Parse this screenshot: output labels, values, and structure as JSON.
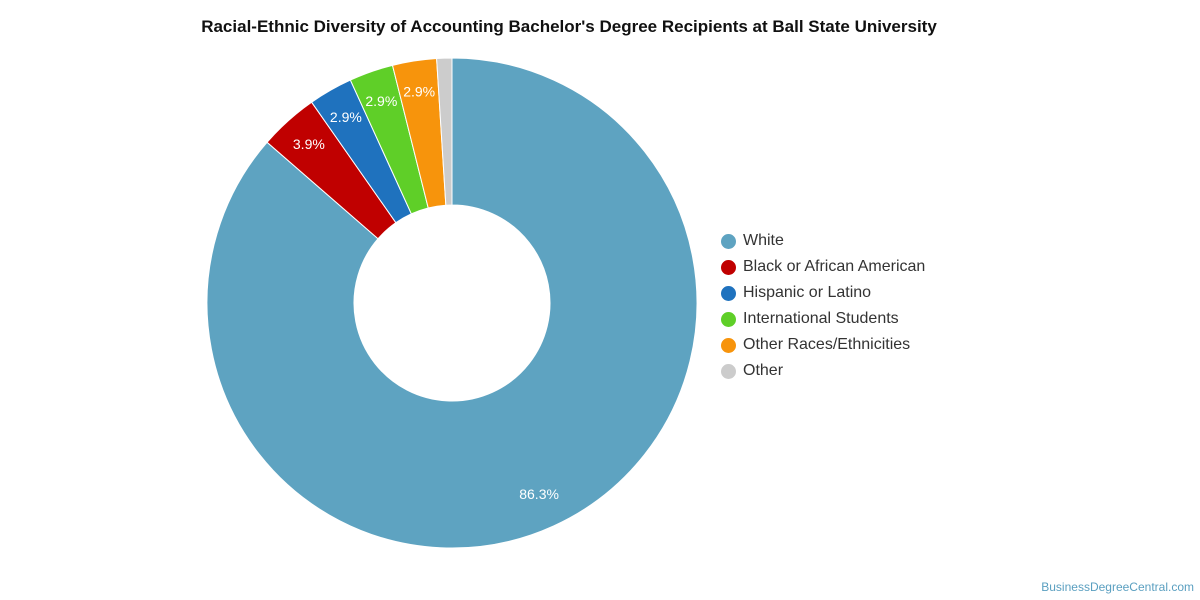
{
  "chart_data": {
    "type": "pie",
    "title": "Racial-Ethnic Diversity of Accounting Bachelor's Degree Recipients at Ball State University",
    "style": "donut",
    "legend_position": "right",
    "unit": "%",
    "slices": [
      {
        "label": "White",
        "value": 86.3,
        "display": "86.3%",
        "color": "#5ea3c1"
      },
      {
        "label": "Black or African American",
        "value": 3.9,
        "display": "3.9%",
        "color": "#c00000"
      },
      {
        "label": "Hispanic or Latino",
        "value": 2.9,
        "display": "2.9%",
        "color": "#1f72be"
      },
      {
        "label": "International Students",
        "value": 2.9,
        "display": "2.9%",
        "color": "#5fcf28"
      },
      {
        "label": "Other Races/Ethnicities",
        "value": 2.9,
        "display": "2.9%",
        "color": "#f7940c"
      },
      {
        "label": "Other",
        "value": 1.0,
        "display": "",
        "color": "#cccccc"
      }
    ]
  },
  "credit": "BusinessDegreeCentral.com"
}
